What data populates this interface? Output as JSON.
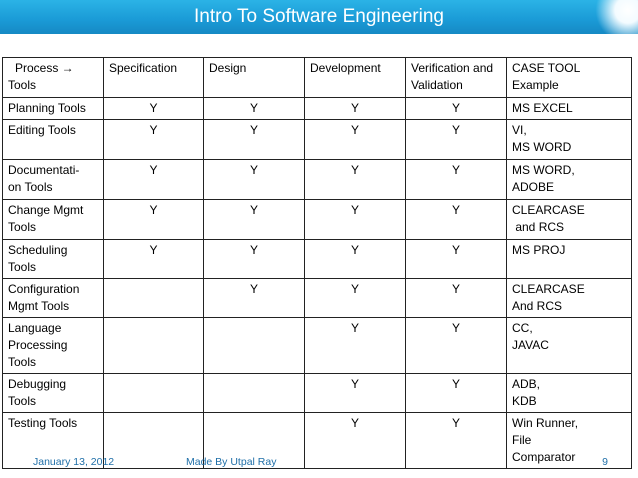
{
  "slide": {
    "title": "Intro To Software Engineering"
  },
  "table": {
    "headers": {
      "process": "Process →",
      "tools": "Tools",
      "specification": "Specification",
      "design": "Design",
      "development": "Development",
      "verification": "Verification and Validation",
      "case_tool": "CASE TOOL",
      "example": "Example"
    },
    "rows": [
      {
        "name": "Planning Tools",
        "spec": "Y",
        "design": "Y",
        "dev": "Y",
        "verif": "Y",
        "example": [
          "MS EXCEL"
        ]
      },
      {
        "name": "Editing Tools",
        "spec": "Y",
        "design": "Y",
        "dev": "Y",
        "verif": "Y",
        "example": [
          "VI,",
          "MS WORD"
        ]
      },
      {
        "name": "Documentati-\non Tools",
        "spec": "Y",
        "design": "Y",
        "dev": "Y",
        "verif": "Y",
        "example": [
          "MS WORD,",
          "ADOBE"
        ]
      },
      {
        "name": "Change Mgmt\nTools",
        "spec": "Y",
        "design": "Y",
        "dev": "Y",
        "verif": "Y",
        "example": [
          "CLEARCASE",
          " and RCS"
        ]
      },
      {
        "name": "Scheduling\nTools",
        "spec": "Y",
        "design": "Y",
        "dev": "Y",
        "verif": "Y",
        "example": [
          "MS PROJ"
        ]
      },
      {
        "name": "Configuration\nMgmt Tools",
        "spec": "",
        "design": "Y",
        "dev": "Y",
        "verif": "Y",
        "example": [
          "CLEARCASE",
          "And RCS"
        ]
      },
      {
        "name": "Language\nProcessing\nTools",
        "spec": "",
        "design": "",
        "dev": "Y",
        "verif": "Y",
        "example": [
          "CC,",
          "JAVAC"
        ]
      },
      {
        "name": "Debugging\nTools",
        "spec": "",
        "design": "",
        "dev": "Y",
        "verif": "Y",
        "example": [
          "ADB,",
          "KDB"
        ]
      },
      {
        "name": "Testing Tools",
        "spec": "",
        "design": "",
        "dev": "Y",
        "verif": "Y",
        "example": [
          "Win Runner,",
          "File",
          "Comparator"
        ]
      }
    ]
  },
  "footer": {
    "date": "January 13, 2012",
    "author": "Made By Utpal Ray",
    "page": "9"
  }
}
